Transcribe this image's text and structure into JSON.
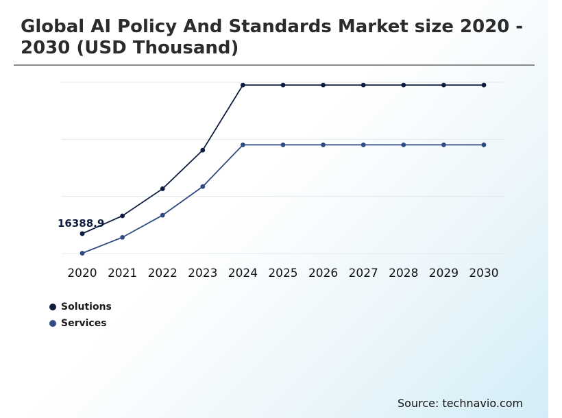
{
  "title": "Global AI Policy And Standards Market size 2020 - 2030 (USD Thousand)",
  "source": "Source: technavio.com",
  "colors": {
    "solutions": "#0d1b3e",
    "services": "#2f4a80",
    "grid": "#e3e8ec"
  },
  "chart_data": {
    "type": "line",
    "title": "Global AI Policy And Standards Market size 2020 - 2030 (USD Thousand)",
    "xlabel": "",
    "ylabel": "",
    "x": [
      "2020",
      "2021",
      "2022",
      "2023",
      "2024",
      "2025",
      "2026",
      "2027",
      "2028",
      "2029",
      "2030"
    ],
    "ylim": [
      10000,
      65000
    ],
    "grid": "horizontal",
    "legend": "bottom-left",
    "series": [
      {
        "name": "Solutions",
        "values": [
          16388.9,
          22100,
          30800,
          43200,
          64100,
          64100,
          64100,
          64100,
          64100,
          64100,
          64100
        ]
      },
      {
        "name": "Services",
        "values": [
          10100,
          15200,
          22300,
          31500,
          44900,
          44900,
          44900,
          44900,
          44900,
          44900,
          44900
        ]
      }
    ],
    "annotations": [
      {
        "series": "Solutions",
        "x": "2020",
        "label": "16388.9"
      }
    ]
  },
  "legend": {
    "items": [
      {
        "label": "Solutions",
        "color": "#0d1b3e"
      },
      {
        "label": "Services",
        "color": "#2f4a80"
      }
    ]
  }
}
